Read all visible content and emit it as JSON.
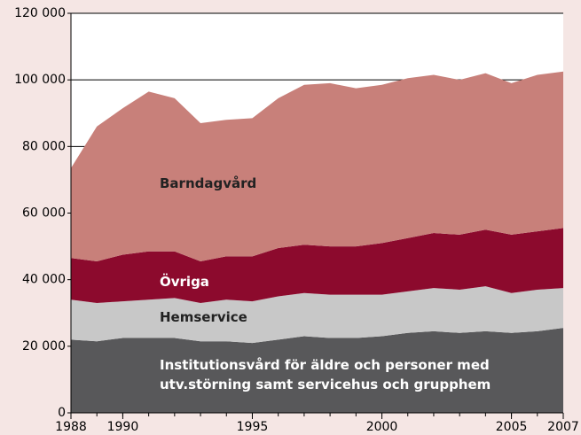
{
  "chart_data": {
    "type": "stacked_area",
    "x": [
      1988,
      1989,
      1990,
      1991,
      1992,
      1993,
      1994,
      1995,
      1996,
      1997,
      1998,
      1999,
      2000,
      2001,
      2002,
      2003,
      2004,
      2005,
      2006,
      2007
    ],
    "xlim": [
      1988,
      2007
    ],
    "xticks": [
      1988,
      1990,
      1995,
      2000,
      2005,
      2007
    ],
    "ylim": [
      0,
      120000
    ],
    "yticks": [
      0,
      {
        "value": 20000,
        "label": "20 000"
      },
      {
        "value": 40000,
        "label": "40 000"
      },
      {
        "value": 60000,
        "label": "60 000"
      },
      {
        "value": 80000,
        "label": "80 000"
      },
      {
        "value": 100000,
        "label": "100 000"
      },
      {
        "value": 120000,
        "label": "120 000"
      }
    ],
    "grid": true,
    "series": [
      {
        "name": "Institutionsvård för äldre och personer med utv.störning samt servicehus och grupphem",
        "color": "#58585a",
        "values": [
          22000,
          21500,
          22500,
          22500,
          22500,
          21500,
          21500,
          21000,
          22000,
          23000,
          22500,
          22500,
          23000,
          24000,
          24500,
          24000,
          24500,
          24000,
          24500,
          25500
        ]
      },
      {
        "name": "Hemservice",
        "color": "#c8c8c8",
        "values": [
          12000,
          11500,
          11000,
          11500,
          12000,
          11500,
          12500,
          12500,
          13000,
          13000,
          13000,
          13000,
          12500,
          12500,
          13000,
          13000,
          13500,
          12000,
          12500,
          12000
        ]
      },
      {
        "name": "Övriga",
        "color": "#8c0a2d",
        "values": [
          12500,
          12500,
          14000,
          14500,
          14000,
          12500,
          13000,
          13500,
          14500,
          14500,
          14500,
          14500,
          15500,
          16000,
          16500,
          16500,
          17000,
          17500,
          17500,
          18000
        ]
      },
      {
        "name": "Barndagvård",
        "color": "#c8807a",
        "values": [
          27000,
          40500,
          44000,
          48000,
          46000,
          41500,
          41000,
          41500,
          45000,
          48000,
          49000,
          47500,
          47500,
          48000,
          47500,
          46500,
          47000,
          45500,
          47000,
          47000
        ]
      }
    ]
  }
}
